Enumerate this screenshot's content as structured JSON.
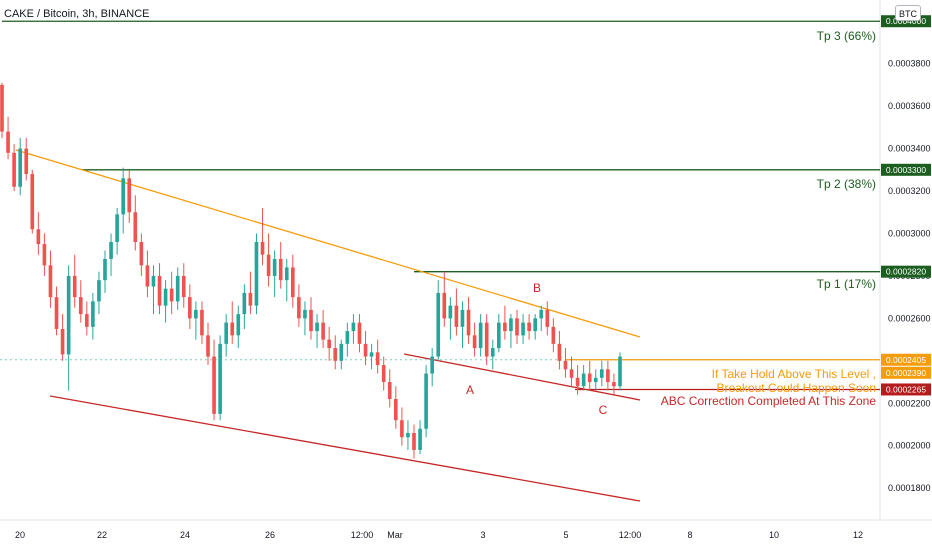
{
  "header": {
    "symbol": "CAKE / Bitcoin, 3h, BINANCE",
    "currency_button": "BTC"
  },
  "chart_data": {
    "type": "candlestick",
    "title": "CAKE / Bitcoin, 3h, BINANCE",
    "ylim": [
      0.000165,
      0.00041
    ],
    "y_ticks": [
      "0.0001800",
      "0.0002000",
      "0.0002200",
      "0.0002400",
      "0.0002600",
      "0.0002800",
      "0.0003000",
      "0.0003200",
      "0.0003400",
      "0.0003600",
      "0.0003800"
    ],
    "x_ticks": [
      "20",
      "22",
      "24",
      "26",
      "12:00",
      "Mar",
      "3",
      "5",
      "12:00",
      "8",
      "10",
      "12"
    ],
    "price_tags": [
      {
        "label": "0.0004000",
        "value": 0.0004,
        "color": "#1b5e20"
      },
      {
        "label": "0.0003300",
        "value": 0.00033,
        "color": "#1b5e20"
      },
      {
        "label": "0.0002820",
        "value": 0.000282,
        "color": "#1b5e20"
      },
      {
        "label": "0.0002405",
        "value": 0.0002405,
        "color": "#f59c0b"
      },
      {
        "label": "0.0002390",
        "value": 0.000239,
        "color": "#f59c0b"
      },
      {
        "label": "0.0002265",
        "value": 0.0002265,
        "color": "#b71c1c"
      }
    ],
    "annotations": {
      "tp3": "Tp 3 (66%)",
      "tp2": "Tp 2 (38%)",
      "tp1": "Tp 1 (17%)",
      "hold_line1": "If Take Hold Above This Level ,",
      "hold_line2": "Breakout Could Happen Soon",
      "abc": "ABC Correction Completed At This Zone",
      "wave_a": "A",
      "wave_b": "B",
      "wave_c": "C"
    },
    "colors": {
      "up": "#26a69a",
      "down": "#ef5350",
      "green_level": "#1b5e20",
      "orange": "#f59c0b",
      "red_line": "#c62828"
    },
    "candles_ohlc": [
      [
        0.00037,
        0.000371,
        0.000345,
        0.000348
      ],
      [
        0.000348,
        0.000355,
        0.000335,
        0.000338
      ],
      [
        0.000338,
        0.000342,
        0.00032,
        0.000322
      ],
      [
        0.000322,
        0.000345,
        0.000318,
        0.00034
      ],
      [
        0.00034,
        0.000345,
        0.000325,
        0.000328
      ],
      [
        0.000328,
        0.00033,
        0.0003,
        0.000302
      ],
      [
        0.000302,
        0.00031,
        0.00029,
        0.000295
      ],
      [
        0.000295,
        0.0003,
        0.00028,
        0.000285
      ],
      [
        0.000285,
        0.000292,
        0.000265,
        0.00027
      ],
      [
        0.00027,
        0.000275,
        0.000252,
        0.000255
      ],
      [
        0.000255,
        0.000262,
        0.00024,
        0.000243
      ],
      [
        0.000243,
        0.000285,
        0.000226,
        0.00028
      ],
      [
        0.00028,
        0.00029,
        0.000265,
        0.00027
      ],
      [
        0.00027,
        0.000278,
        0.000258,
        0.000262
      ],
      [
        0.000262,
        0.000268,
        0.000252,
        0.000256
      ],
      [
        0.000256,
        0.000272,
        0.00025,
        0.000268
      ],
      [
        0.000268,
        0.000282,
        0.000262,
        0.000278
      ],
      [
        0.000278,
        0.000292,
        0.000272,
        0.000288
      ],
      [
        0.000288,
        0.0003,
        0.00028,
        0.000296
      ],
      [
        0.000296,
        0.000312,
        0.00029,
        0.000309
      ],
      [
        0.000309,
        0.000331,
        0.0003,
        0.000326
      ],
      [
        0.000326,
        0.00033,
        0.000305,
        0.00031
      ],
      [
        0.00031,
        0.000318,
        0.000292,
        0.000296
      ],
      [
        0.000296,
        0.0003,
        0.00028,
        0.000285
      ],
      [
        0.000285,
        0.000292,
        0.00027,
        0.000275
      ],
      [
        0.000275,
        0.000285,
        0.000262,
        0.00028
      ],
      [
        0.00028,
        0.000286,
        0.000262,
        0.000266
      ],
      [
        0.000266,
        0.000278,
        0.000258,
        0.000274
      ],
      [
        0.000274,
        0.000282,
        0.000262,
        0.000268
      ],
      [
        0.000268,
        0.000284,
        0.000264,
        0.00028
      ],
      [
        0.00028,
        0.000286,
        0.000265,
        0.00027
      ],
      [
        0.00027,
        0.000276,
        0.000255,
        0.00026
      ],
      [
        0.00026,
        0.000268,
        0.00025,
        0.000264
      ],
      [
        0.000264,
        0.000268,
        0.000248,
        0.000252
      ],
      [
        0.000252,
        0.000258,
        0.000238,
        0.000242
      ],
      [
        0.000242,
        0.00025,
        0.000212,
        0.000215
      ],
      [
        0.000215,
        0.000252,
        0.000212,
        0.000248
      ],
      [
        0.000248,
        0.000262,
        0.000242,
        0.000258
      ],
      [
        0.000258,
        0.000268,
        0.000248,
        0.000252
      ],
      [
        0.000252,
        0.000266,
        0.000246,
        0.000262
      ],
      [
        0.000262,
        0.000276,
        0.000255,
        0.000272
      ],
      [
        0.000272,
        0.000282,
        0.000262,
        0.000266
      ],
      [
        0.000266,
        0.0003,
        0.000262,
        0.000296
      ],
      [
        0.000296,
        0.000312,
        0.000285,
        0.00029
      ],
      [
        0.00029,
        0.0003,
        0.000275,
        0.00028
      ],
      [
        0.00028,
        0.000292,
        0.00027,
        0.000288
      ],
      [
        0.000288,
        0.000296,
        0.000274,
        0.000278
      ],
      [
        0.000278,
        0.000288,
        0.000268,
        0.000284
      ],
      [
        0.000284,
        0.00029,
        0.000265,
        0.00027
      ],
      [
        0.00027,
        0.000276,
        0.000256,
        0.00026
      ],
      [
        0.00026,
        0.000268,
        0.000252,
        0.000264
      ],
      [
        0.000264,
        0.00027,
        0.00025,
        0.000254
      ],
      [
        0.000254,
        0.000262,
        0.000246,
        0.000258
      ],
      [
        0.000258,
        0.000264,
        0.000246,
        0.00025
      ],
      [
        0.00025,
        0.000256,
        0.00024,
        0.000246
      ],
      [
        0.000246,
        0.000252,
        0.000236,
        0.00024
      ],
      [
        0.00024,
        0.00025,
        0.000236,
        0.000248
      ],
      [
        0.000248,
        0.000258,
        0.000242,
        0.000254
      ],
      [
        0.000254,
        0.000262,
        0.000248,
        0.000258
      ],
      [
        0.000258,
        0.000262,
        0.000244,
        0.000248
      ],
      [
        0.000248,
        0.000254,
        0.000238,
        0.000242
      ],
      [
        0.000242,
        0.000248,
        0.000236,
        0.000244
      ],
      [
        0.000244,
        0.00025,
        0.000234,
        0.000238
      ],
      [
        0.000238,
        0.000242,
        0.000226,
        0.00023
      ],
      [
        0.00023,
        0.000236,
        0.000218,
        0.000222
      ],
      [
        0.000222,
        0.000228,
        0.000208,
        0.000212
      ],
      [
        0.000212,
        0.000218,
        0.0002,
        0.000204
      ],
      [
        0.000204,
        0.000212,
        0.000198,
        0.000206
      ],
      [
        0.000206,
        0.00021,
        0.000194,
        0.000198
      ],
      [
        0.000198,
        0.000212,
        0.000196,
        0.000208
      ],
      [
        0.000208,
        0.000238,
        0.000204,
        0.000234
      ],
      [
        0.000234,
        0.000246,
        0.000228,
        0.000242
      ],
      [
        0.000242,
        0.000278,
        0.00024,
        0.000272
      ],
      [
        0.000272,
        0.000282,
        0.000256,
        0.00026
      ],
      [
        0.00026,
        0.00027,
        0.00025,
        0.000266
      ],
      [
        0.000266,
        0.000274,
        0.000252,
        0.000256
      ],
      [
        0.000256,
        0.000268,
        0.000246,
        0.000264
      ],
      [
        0.000264,
        0.00027,
        0.000248,
        0.000252
      ],
      [
        0.000252,
        0.000258,
        0.000242,
        0.000246
      ],
      [
        0.000246,
        0.000262,
        0.000242,
        0.000258
      ],
      [
        0.000258,
        0.000262,
        0.000238,
        0.000242
      ],
      [
        0.000242,
        0.00025,
        0.000236,
        0.000246
      ],
      [
        0.000246,
        0.000262,
        0.000244,
        0.000258
      ],
      [
        0.000258,
        0.000266,
        0.00025,
        0.000254
      ],
      [
        0.000254,
        0.000262,
        0.000246,
        0.00026
      ],
      [
        0.00026,
        0.000264,
        0.000248,
        0.000252
      ],
      [
        0.000252,
        0.000262,
        0.000248,
        0.000258
      ],
      [
        0.000258,
        0.000262,
        0.00025,
        0.000254
      ],
      [
        0.000254,
        0.000262,
        0.00025,
        0.00026
      ],
      [
        0.00026,
        0.000266,
        0.000254,
        0.000264
      ],
      [
        0.000264,
        0.000268,
        0.000252,
        0.000256
      ],
      [
        0.000256,
        0.00026,
        0.000244,
        0.000248
      ],
      [
        0.000248,
        0.000254,
        0.000236,
        0.00024
      ],
      [
        0.00024,
        0.000246,
        0.000232,
        0.000236
      ],
      [
        0.000236,
        0.000242,
        0.000228,
        0.000232
      ],
      [
        0.000232,
        0.000238,
        0.000224,
        0.000228
      ],
      [
        0.000228,
        0.000238,
        0.000226,
        0.000234
      ],
      [
        0.000234,
        0.00024,
        0.000226,
        0.00023
      ],
      [
        0.00023,
        0.000236,
        0.000226,
        0.000232
      ],
      [
        0.000232,
        0.00024,
        0.000228,
        0.000236
      ],
      [
        0.000236,
        0.00024,
        0.000226,
        0.00023
      ],
      [
        0.00023,
        0.000234,
        0.000224,
        0.000228
      ],
      [
        0.000228,
        0.000244,
        0.000226,
        0.000242
      ]
    ]
  }
}
